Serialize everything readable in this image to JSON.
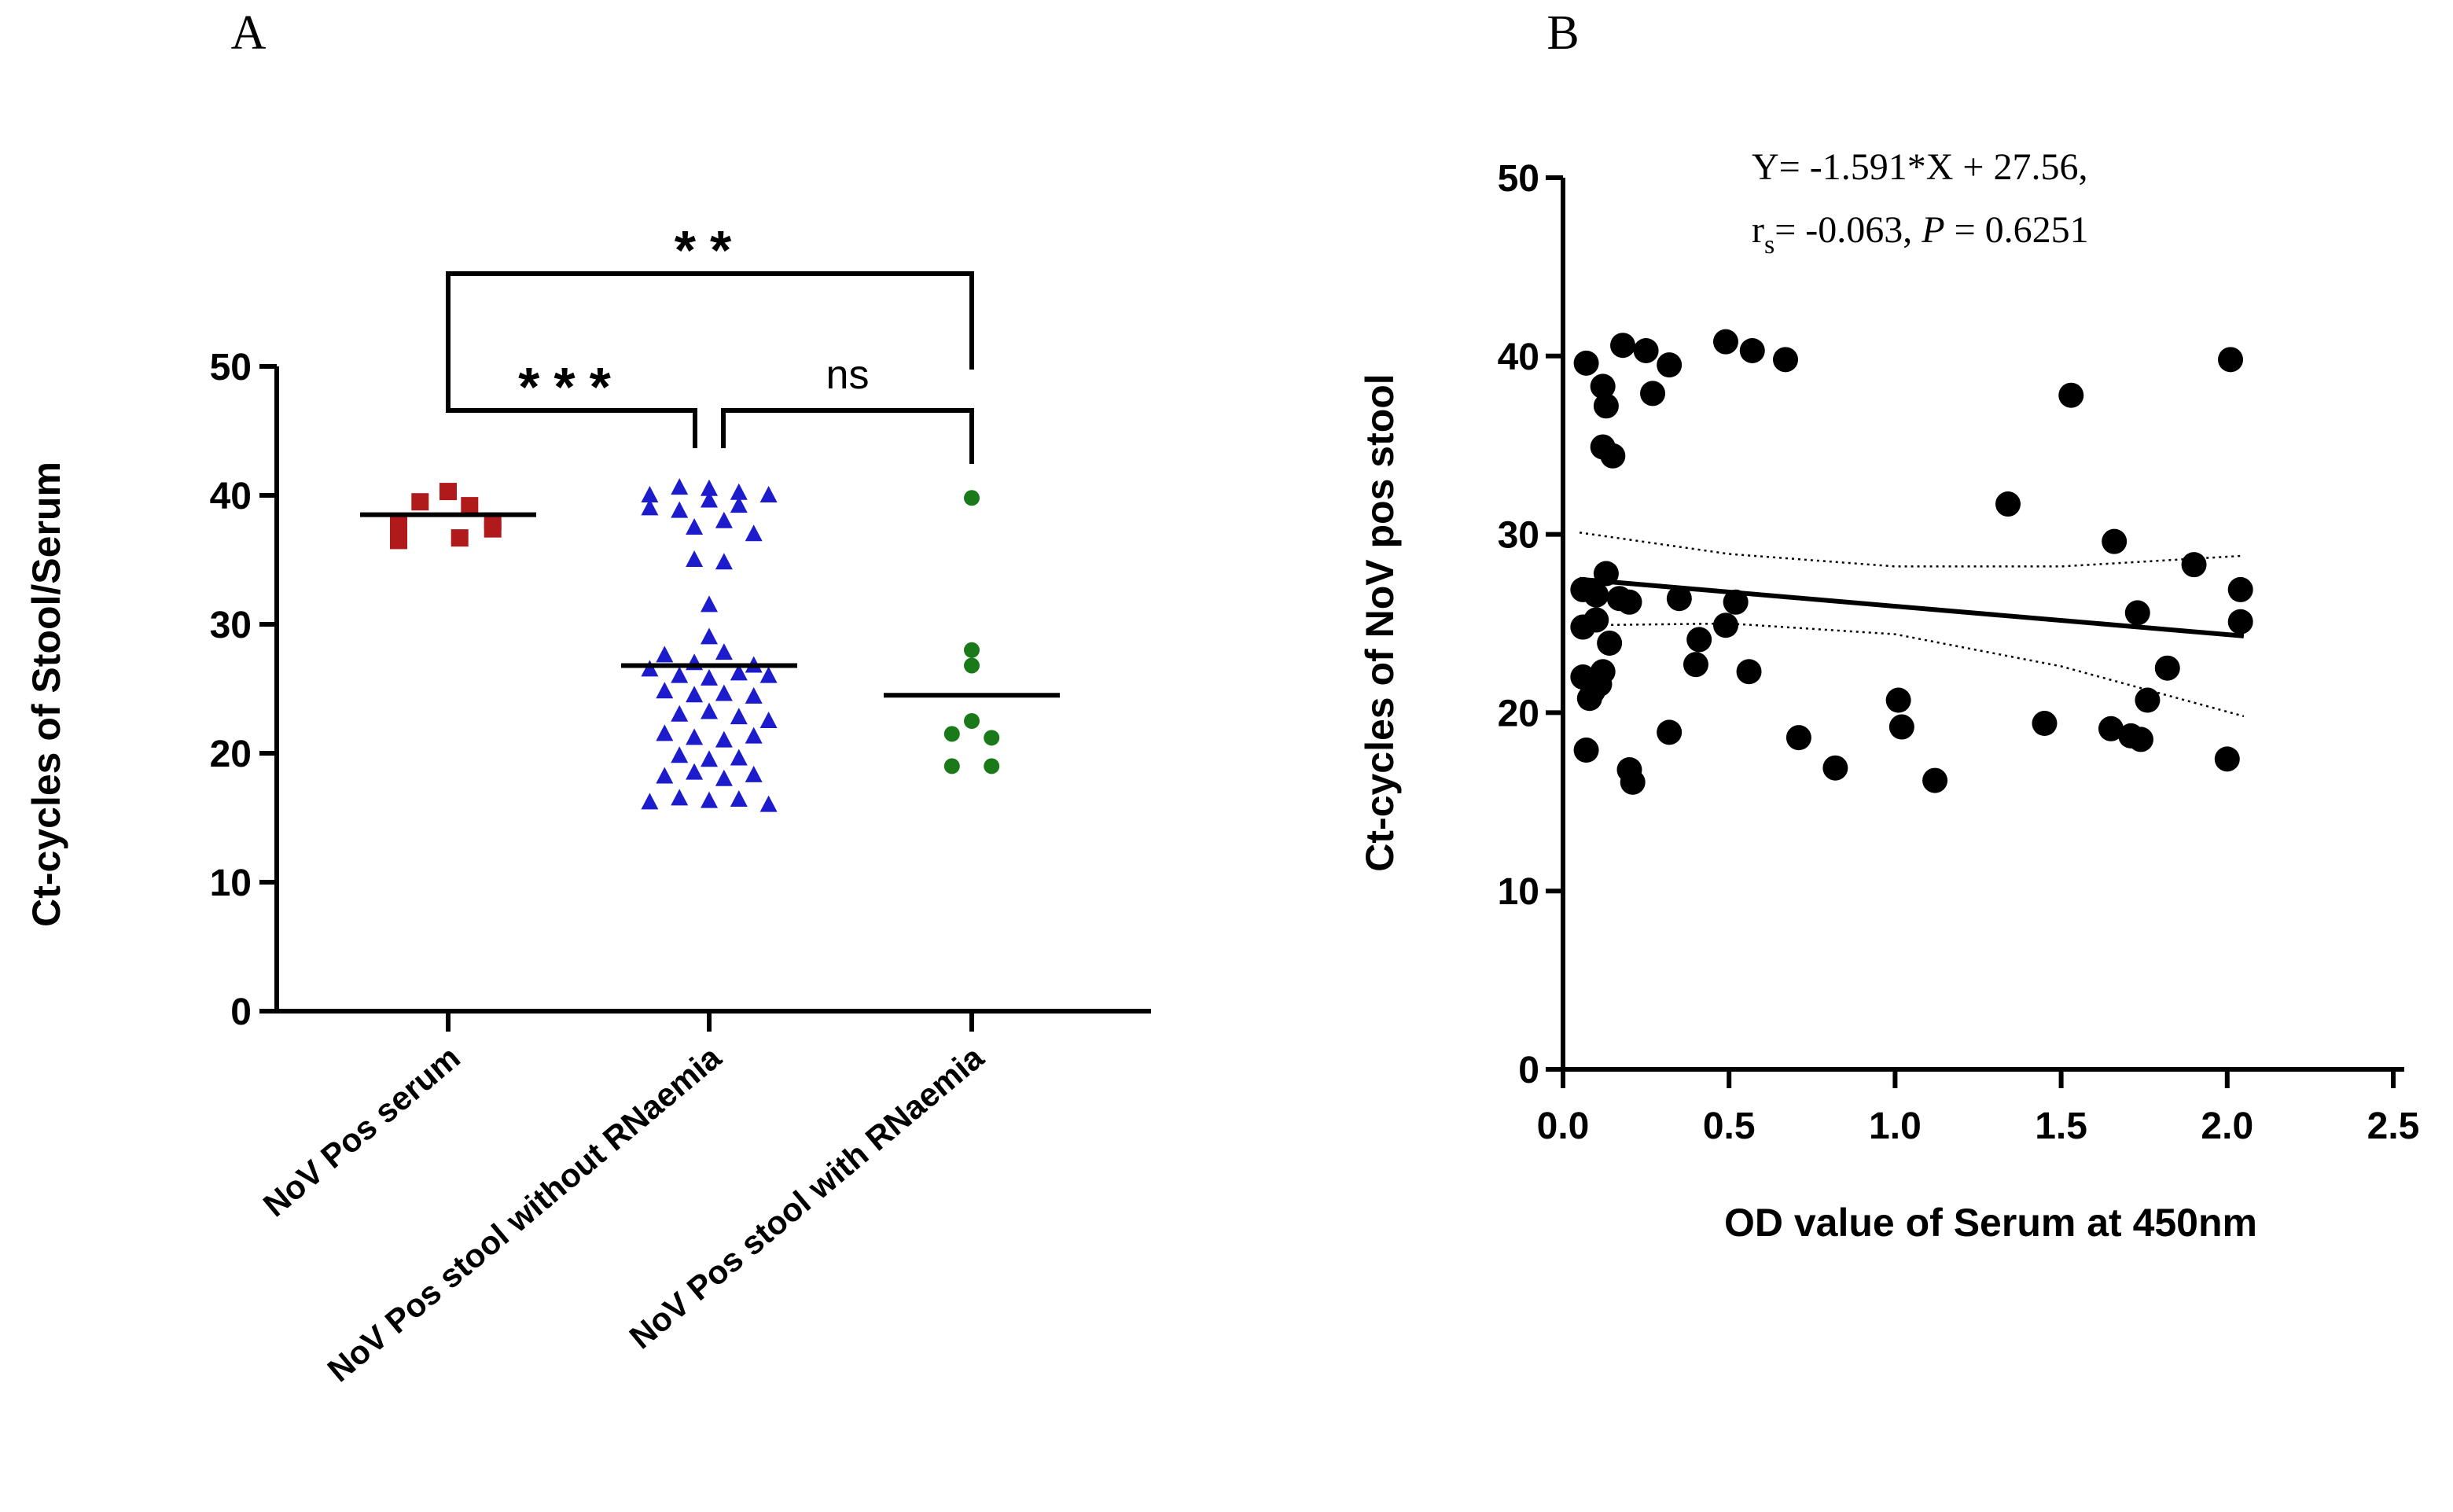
{
  "colors": {
    "serum": "#b01a1a",
    "without": "#1c1ccc",
    "with": "#1a7a1a",
    "ink": "#000000"
  },
  "chart_data": [
    {
      "panel_label": "A",
      "type": "scatter",
      "title": "",
      "xlabel": "",
      "ylabel": "Ct-cycles of Stool/Serum",
      "ylim": [
        0,
        50
      ],
      "yticks": [
        "0",
        "10",
        "20",
        "30",
        "40",
        "50"
      ],
      "categories": [
        "NoV Pos serum",
        "NoV Pos stool without RNaemia",
        "NoV Pos stool with RNaemia"
      ],
      "series": [
        {
          "name": "NoV Pos serum",
          "marker": "square",
          "color_key": "serum",
          "median": 38.5,
          "points": [
            {
              "o": -0.3,
              "v": 37.8
            },
            {
              "o": -0.17,
              "v": 39.5
            },
            {
              "o": 0.0,
              "v": 40.3
            },
            {
              "o": 0.13,
              "v": 39.2
            },
            {
              "o": 0.27,
              "v": 38.0
            },
            {
              "o": -0.3,
              "v": 36.5
            },
            {
              "o": 0.07,
              "v": 36.7
            },
            {
              "o": 0.27,
              "v": 37.4
            }
          ]
        },
        {
          "name": "NoV Pos stool without RNaemia",
          "marker": "triangle",
          "color_key": "without",
          "median": 26.8,
          "points": [
            {
              "o": -0.36,
              "v": 40.0
            },
            {
              "o": -0.18,
              "v": 40.6
            },
            {
              "o": 0.0,
              "v": 40.5
            },
            {
              "o": 0.18,
              "v": 40.2
            },
            {
              "o": 0.36,
              "v": 40.0
            },
            {
              "o": -0.36,
              "v": 39.0
            },
            {
              "o": -0.18,
              "v": 38.8
            },
            {
              "o": 0.0,
              "v": 39.6
            },
            {
              "o": 0.18,
              "v": 39.2
            },
            {
              "o": -0.09,
              "v": 37.5
            },
            {
              "o": 0.09,
              "v": 38.0
            },
            {
              "o": 0.27,
              "v": 37.0
            },
            {
              "o": -0.09,
              "v": 35.0
            },
            {
              "o": 0.09,
              "v": 34.8
            },
            {
              "o": 0.0,
              "v": 31.5
            },
            {
              "o": 0.0,
              "v": 29.0
            },
            {
              "o": -0.27,
              "v": 27.6
            },
            {
              "o": -0.09,
              "v": 27.0
            },
            {
              "o": 0.09,
              "v": 27.8
            },
            {
              "o": 0.27,
              "v": 26.8
            },
            {
              "o": -0.36,
              "v": 26.5
            },
            {
              "o": -0.18,
              "v": 26.0
            },
            {
              "o": 0.0,
              "v": 25.8
            },
            {
              "o": 0.18,
              "v": 26.2
            },
            {
              "o": 0.36,
              "v": 26.0
            },
            {
              "o": -0.27,
              "v": 24.8
            },
            {
              "o": -0.09,
              "v": 24.5
            },
            {
              "o": 0.09,
              "v": 24.6
            },
            {
              "o": 0.27,
              "v": 24.4
            },
            {
              "o": -0.18,
              "v": 23.0
            },
            {
              "o": 0.0,
              "v": 23.2
            },
            {
              "o": 0.18,
              "v": 22.8
            },
            {
              "o": 0.36,
              "v": 22.5
            },
            {
              "o": -0.27,
              "v": 21.5
            },
            {
              "o": -0.09,
              "v": 21.2
            },
            {
              "o": 0.09,
              "v": 21.0
            },
            {
              "o": 0.27,
              "v": 21.3
            },
            {
              "o": -0.18,
              "v": 19.8
            },
            {
              "o": 0.0,
              "v": 19.5
            },
            {
              "o": 0.18,
              "v": 19.6
            },
            {
              "o": -0.27,
              "v": 18.2
            },
            {
              "o": -0.09,
              "v": 18.5
            },
            {
              "o": 0.09,
              "v": 18.0
            },
            {
              "o": 0.27,
              "v": 18.3
            },
            {
              "o": -0.36,
              "v": 16.2
            },
            {
              "o": -0.18,
              "v": 16.5
            },
            {
              "o": 0.0,
              "v": 16.3
            },
            {
              "o": 0.18,
              "v": 16.4
            },
            {
              "o": 0.36,
              "v": 16.0
            }
          ]
        },
        {
          "name": "NoV Pos stool with RNaemia",
          "marker": "circle",
          "color_key": "with",
          "median": 24.5,
          "points": [
            {
              "o": 0.0,
              "v": 39.8
            },
            {
              "o": 0.0,
              "v": 28.0
            },
            {
              "o": 0.0,
              "v": 26.8
            },
            {
              "o": -0.12,
              "v": 21.5
            },
            {
              "o": 0.12,
              "v": 21.2
            },
            {
              "o": 0.0,
              "v": 22.5
            },
            {
              "o": -0.12,
              "v": 19.0
            },
            {
              "o": 0.12,
              "v": 19.0
            }
          ]
        }
      ],
      "comparisons": [
        {
          "from": 0,
          "to": 2,
          "label": "**",
          "level": "top"
        },
        {
          "from": 0,
          "to": 1,
          "label": "***",
          "level": "low"
        },
        {
          "from": 1,
          "to": 2,
          "label": "ns",
          "level": "low"
        }
      ]
    },
    {
      "panel_label": "B",
      "type": "scatter",
      "title": "",
      "xlabel": "OD value of Serum at 450nm",
      "ylabel": "Ct-cycles of NoV pos stool",
      "xlim": [
        0,
        2.5
      ],
      "ylim": [
        0,
        50
      ],
      "xticks": [
        "0.0",
        "0.5",
        "1.0",
        "1.5",
        "2.0",
        "2.5"
      ],
      "yticks": [
        "0",
        "10",
        "20",
        "30",
        "40",
        "50"
      ],
      "annotation": {
        "line1": "Y= -1.591*X + 27.56,",
        "line2_prefix": "r",
        "line2_sub": "s",
        "line2_mid": "= -0.063, ",
        "line2_p": "P",
        "line2_suffix": " = 0.6251"
      },
      "regression": {
        "slope": -1.591,
        "intercept": 27.56,
        "x_range": [
          0.05,
          2.05
        ]
      },
      "confidence_band": {
        "x": [
          0.05,
          0.5,
          1.0,
          1.5,
          2.05
        ],
        "upper": [
          30.1,
          28.9,
          28.2,
          28.2,
          28.8
        ],
        "lower": [
          24.9,
          25.0,
          24.4,
          22.6,
          19.8
        ]
      },
      "points": [
        {
          "x": 0.07,
          "y": 39.6
        },
        {
          "x": 0.12,
          "y": 38.3
        },
        {
          "x": 0.18,
          "y": 40.6
        },
        {
          "x": 0.25,
          "y": 40.3
        },
        {
          "x": 0.32,
          "y": 39.5
        },
        {
          "x": 0.49,
          "y": 40.8
        },
        {
          "x": 0.57,
          "y": 40.3
        },
        {
          "x": 0.67,
          "y": 39.8
        },
        {
          "x": 0.13,
          "y": 37.2
        },
        {
          "x": 0.27,
          "y": 37.9
        },
        {
          "x": 0.12,
          "y": 34.9
        },
        {
          "x": 0.15,
          "y": 34.4
        },
        {
          "x": 1.53,
          "y": 37.8
        },
        {
          "x": 2.01,
          "y": 39.8
        },
        {
          "x": 1.34,
          "y": 31.7
        },
        {
          "x": 1.66,
          "y": 29.6
        },
        {
          "x": 1.9,
          "y": 28.3
        },
        {
          "x": 2.04,
          "y": 26.9
        },
        {
          "x": 2.04,
          "y": 25.1
        },
        {
          "x": 1.73,
          "y": 25.6
        },
        {
          "x": 0.06,
          "y": 26.9
        },
        {
          "x": 0.1,
          "y": 26.6
        },
        {
          "x": 0.13,
          "y": 27.8
        },
        {
          "x": 0.17,
          "y": 26.4
        },
        {
          "x": 0.2,
          "y": 26.2
        },
        {
          "x": 0.35,
          "y": 26.4
        },
        {
          "x": 0.52,
          "y": 26.2
        },
        {
          "x": 0.06,
          "y": 24.8
        },
        {
          "x": 0.1,
          "y": 25.2
        },
        {
          "x": 0.14,
          "y": 23.9
        },
        {
          "x": 0.41,
          "y": 24.1
        },
        {
          "x": 0.49,
          "y": 24.9
        },
        {
          "x": 0.4,
          "y": 22.7
        },
        {
          "x": 0.56,
          "y": 22.3
        },
        {
          "x": 0.06,
          "y": 22.0
        },
        {
          "x": 0.09,
          "y": 21.2
        },
        {
          "x": 0.12,
          "y": 22.3
        },
        {
          "x": 0.08,
          "y": 20.8
        },
        {
          "x": 0.11,
          "y": 21.6
        },
        {
          "x": 1.82,
          "y": 22.5
        },
        {
          "x": 1.76,
          "y": 20.7
        },
        {
          "x": 1.01,
          "y": 20.7
        },
        {
          "x": 1.02,
          "y": 19.2
        },
        {
          "x": 1.45,
          "y": 19.4
        },
        {
          "x": 1.65,
          "y": 19.1
        },
        {
          "x": 1.71,
          "y": 18.7
        },
        {
          "x": 1.74,
          "y": 18.5
        },
        {
          "x": 0.32,
          "y": 18.9
        },
        {
          "x": 0.71,
          "y": 18.6
        },
        {
          "x": 0.07,
          "y": 17.9
        },
        {
          "x": 0.2,
          "y": 16.8
        },
        {
          "x": 0.21,
          "y": 16.1
        },
        {
          "x": 0.82,
          "y": 16.9
        },
        {
          "x": 1.12,
          "y": 16.2
        },
        {
          "x": 2.0,
          "y": 17.4
        }
      ]
    }
  ]
}
